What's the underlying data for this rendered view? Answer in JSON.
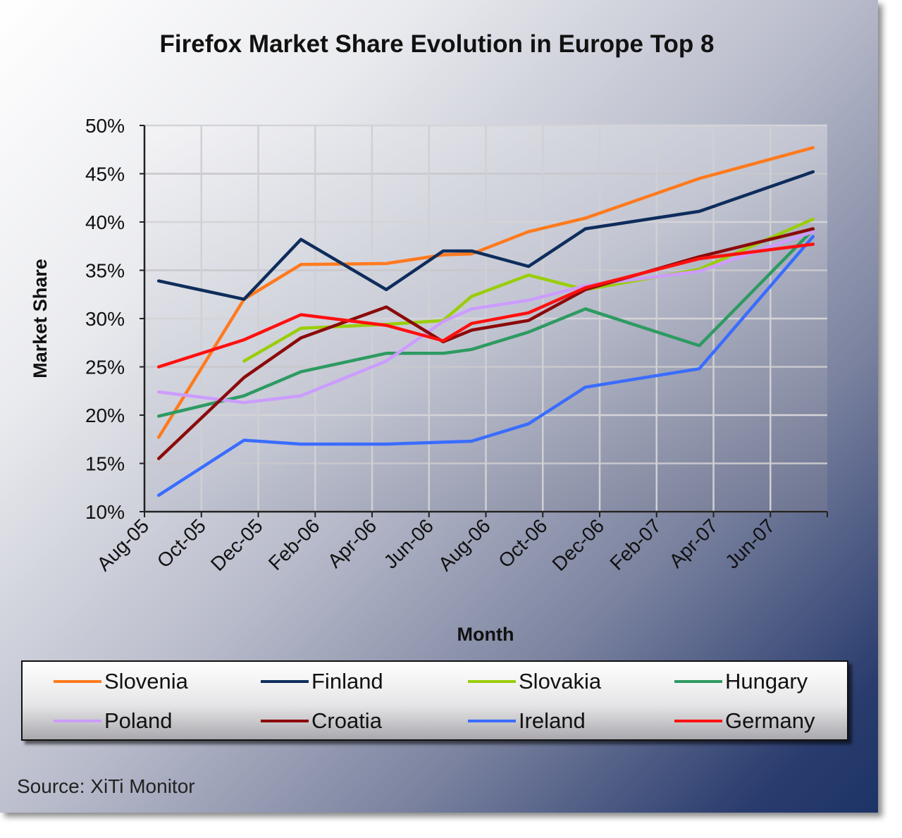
{
  "chart_data": {
    "type": "line",
    "title": "Firefox Market Share Evolution in Europe Top 8",
    "xlabel": "Month",
    "ylabel": "Market Share",
    "ylim": [
      10,
      50
    ],
    "y_ticks": [
      "10%",
      "15%",
      "20%",
      "25%",
      "30%",
      "35%",
      "40%",
      "45%",
      "50%"
    ],
    "x_ticks": [
      "Aug-05",
      "Oct-05",
      "Dec-05",
      "Feb-06",
      "Apr-06",
      "Jun-06",
      "Aug-06",
      "Oct-06",
      "Dec-06",
      "Feb-07",
      "Apr-07",
      "Jun-07"
    ],
    "x_range": [
      "Aug-05",
      "Jul-07"
    ],
    "grid": true,
    "legend_placement": "bottom",
    "x": [
      "Aug-05",
      "Nov-05",
      "Jan-06",
      "Apr-06",
      "Jun-06",
      "Jul-06",
      "Sep-06",
      "Nov-06",
      "Mar-07",
      "Jul-07"
    ],
    "series": [
      {
        "name": "Slovenia",
        "color": "#ff7a1e",
        "values": [
          17.7,
          32.0,
          35.6,
          35.7,
          36.6,
          36.7,
          39.0,
          40.4,
          44.5,
          47.7
        ]
      },
      {
        "name": "Finland",
        "color": "#0e2d5c",
        "values": [
          33.9,
          32.0,
          38.2,
          33.0,
          37.0,
          37.0,
          35.4,
          39.3,
          41.1,
          45.2
        ]
      },
      {
        "name": "Slovakia",
        "color": "#9acd0a",
        "values": [
          null,
          25.6,
          29.0,
          29.4,
          29.8,
          32.3,
          34.5,
          33.0,
          35.1,
          40.3
        ]
      },
      {
        "name": "Hungary",
        "color": "#2e9a62",
        "values": [
          19.9,
          22.0,
          24.5,
          26.4,
          26.4,
          26.8,
          28.6,
          31.0,
          27.2,
          39.2
        ]
      },
      {
        "name": "Poland",
        "color": "#cc9cff",
        "values": [
          22.4,
          21.3,
          22.0,
          25.6,
          29.7,
          31.0,
          31.9,
          33.4,
          34.9,
          39.0
        ]
      },
      {
        "name": "Croatia",
        "color": "#8b0a0a",
        "values": [
          15.5,
          23.9,
          28.0,
          31.2,
          27.6,
          28.8,
          29.8,
          33.0,
          36.4,
          39.3
        ]
      },
      {
        "name": "Ireland",
        "color": "#3a6cff",
        "values": [
          11.7,
          17.4,
          17.0,
          17.0,
          17.2,
          17.3,
          19.1,
          22.9,
          24.8,
          38.5
        ]
      },
      {
        "name": "Germany",
        "color": "#ff1010",
        "values": [
          25.0,
          27.8,
          30.4,
          29.3,
          27.7,
          29.5,
          30.6,
          33.2,
          36.2,
          37.7
        ]
      }
    ]
  },
  "source": "Source: XiTi Monitor"
}
